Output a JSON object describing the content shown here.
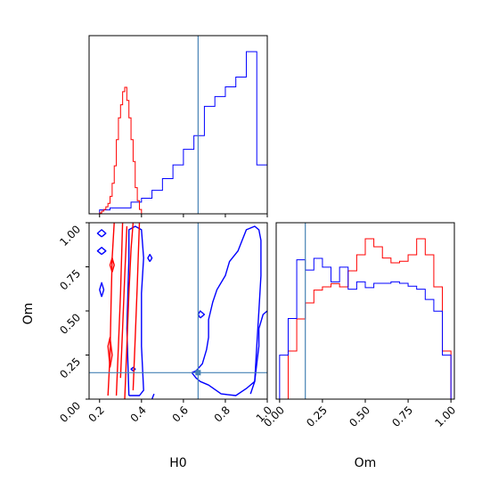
{
  "chart_data": {
    "type": "corner",
    "parameters": [
      "H0",
      "Om"
    ],
    "truth": {
      "H0": 0.67,
      "Om": 0.15
    },
    "truth_color": "#4682b4",
    "series": [
      {
        "color": "#ff0000"
      },
      {
        "color": "#0000ff"
      }
    ],
    "H0_axis": {
      "label": "H0",
      "range": [
        0.15,
        1.0
      ],
      "ticks": [
        "0.2",
        "0.4",
        "0.6",
        "0.8",
        "1.0"
      ],
      "tick_values": [
        0.2,
        0.4,
        0.6,
        0.8,
        1.0
      ]
    },
    "Om_axis": {
      "label": "Om",
      "range": [
        0.0,
        1.0
      ],
      "ticks": [
        "0.00",
        "0.25",
        "0.50",
        "0.75",
        "1.00"
      ],
      "tick_values": [
        0.0,
        0.25,
        0.5,
        0.75,
        1.0
      ]
    },
    "hist_H0": {
      "red": {
        "edges": [
          0.2,
          0.21,
          0.22,
          0.23,
          0.24,
          0.25,
          0.26,
          0.27,
          0.28,
          0.29,
          0.3,
          0.31,
          0.32,
          0.33,
          0.34,
          0.35,
          0.36,
          0.37,
          0.38,
          0.39,
          0.4
        ],
        "counts": [
          1,
          3,
          5,
          8,
          12,
          20,
          35,
          55,
          85,
          110,
          125,
          140,
          145,
          130,
          110,
          85,
          60,
          30,
          15,
          5
        ]
      },
      "blue": {
        "edges": [
          0.2,
          0.25,
          0.3,
          0.35,
          0.4,
          0.45,
          0.5,
          0.55,
          0.6,
          0.65,
          0.7,
          0.75,
          0.8,
          0.85,
          0.9,
          0.95,
          1.0
        ],
        "counts": [
          2,
          3,
          3,
          6,
          8,
          12,
          18,
          25,
          33,
          40,
          55,
          60,
          65,
          70,
          83,
          25
        ]
      }
    },
    "hist_Om": {
      "red": {
        "edges": [
          0.0,
          0.05,
          0.1,
          0.15,
          0.2,
          0.25,
          0.3,
          0.35,
          0.4,
          0.45,
          0.5,
          0.55,
          0.6,
          0.65,
          0.7,
          0.75,
          0.8,
          0.85,
          0.9,
          0.95,
          1.0
        ],
        "counts": [
          0,
          30,
          50,
          60,
          68,
          70,
          72,
          70,
          80,
          90,
          100,
          95,
          88,
          85,
          86,
          90,
          100,
          90,
          70,
          30
        ]
      },
      "blue": {
        "edges": [
          0.0,
          0.05,
          0.1,
          0.15,
          0.2,
          0.25,
          0.3,
          0.35,
          0.4,
          0.45,
          0.5,
          0.55,
          0.6,
          0.65,
          0.7,
          0.75,
          0.8,
          0.85,
          0.9,
          0.95,
          1.0
        ],
        "counts": [
          30,
          55,
          95,
          88,
          96,
          90,
          80,
          90,
          75,
          80,
          76,
          79,
          79,
          80,
          79,
          77,
          75,
          68,
          60,
          30
        ]
      }
    },
    "contours": {
      "red": [
        [
          [
            0.24,
            0.02
          ],
          [
            0.25,
            0.25
          ],
          [
            0.255,
            0.55
          ],
          [
            0.26,
            0.8
          ],
          [
            0.27,
            1.0
          ]
        ],
        [
          [
            0.28,
            0.02
          ],
          [
            0.29,
            0.3
          ],
          [
            0.3,
            0.6
          ],
          [
            0.31,
            1.0
          ]
        ],
        [
          [
            0.32,
            0.0
          ],
          [
            0.33,
            0.3
          ],
          [
            0.34,
            0.6
          ],
          [
            0.35,
            0.85
          ],
          [
            0.36,
            1.0
          ]
        ],
        [
          [
            0.36,
            0.05
          ],
          [
            0.37,
            0.35
          ],
          [
            0.38,
            0.65
          ],
          [
            0.39,
            1.0
          ]
        ],
        [
          [
            0.3,
            0.12
          ],
          [
            0.31,
            0.4
          ],
          [
            0.32,
            0.7
          ],
          [
            0.33,
            0.98
          ]
        ],
        [
          [
            0.25,
            0.18
          ],
          [
            0.26,
            0.25
          ],
          [
            0.25,
            0.35
          ],
          [
            0.24,
            0.3
          ],
          [
            0.25,
            0.18
          ]
        ],
        [
          [
            0.26,
            0.72
          ],
          [
            0.27,
            0.76
          ],
          [
            0.26,
            0.8
          ],
          [
            0.25,
            0.76
          ],
          [
            0.26,
            0.72
          ]
        ]
      ],
      "blue": [
        [
          [
            0.34,
            0.02
          ],
          [
            0.33,
            0.4
          ],
          [
            0.34,
            0.8
          ],
          [
            0.34,
            0.96
          ],
          [
            0.37,
            0.98
          ],
          [
            0.4,
            0.96
          ],
          [
            0.41,
            0.8
          ],
          [
            0.4,
            0.6
          ],
          [
            0.4,
            0.3
          ],
          [
            0.41,
            0.05
          ],
          [
            0.39,
            0.02
          ],
          [
            0.34,
            0.02
          ]
        ],
        [
          [
            0.21,
            0.92
          ],
          [
            0.23,
            0.94
          ],
          [
            0.21,
            0.96
          ],
          [
            0.19,
            0.94
          ],
          [
            0.21,
            0.92
          ]
        ],
        [
          [
            0.21,
            0.82
          ],
          [
            0.23,
            0.84
          ],
          [
            0.21,
            0.86
          ],
          [
            0.19,
            0.84
          ],
          [
            0.21,
            0.82
          ]
        ],
        [
          [
            0.21,
            0.58
          ],
          [
            0.22,
            0.62
          ],
          [
            0.21,
            0.66
          ],
          [
            0.2,
            0.62
          ],
          [
            0.21,
            0.58
          ]
        ],
        [
          [
            0.44,
            0.78
          ],
          [
            0.45,
            0.8
          ],
          [
            0.44,
            0.82
          ],
          [
            0.43,
            0.8
          ],
          [
            0.44,
            0.78
          ]
        ],
        [
          [
            0.36,
            0.16
          ],
          [
            0.37,
            0.17
          ],
          [
            0.36,
            0.18
          ],
          [
            0.35,
            0.17
          ],
          [
            0.36,
            0.16
          ]
        ],
        [
          [
            0.68,
            0.46
          ],
          [
            0.7,
            0.48
          ],
          [
            0.68,
            0.5
          ],
          [
            0.67,
            0.48
          ],
          [
            0.68,
            0.46
          ]
        ],
        [
          [
            0.64,
            0.15
          ],
          [
            0.66,
            0.12
          ],
          [
            0.68,
            0.1
          ],
          [
            0.72,
            0.08
          ],
          [
            0.78,
            0.03
          ],
          [
            0.85,
            0.02
          ],
          [
            0.9,
            0.06
          ],
          [
            0.94,
            0.1
          ],
          [
            0.95,
            0.3
          ],
          [
            0.96,
            0.5
          ],
          [
            0.97,
            0.7
          ],
          [
            0.97,
            0.9
          ],
          [
            0.96,
            0.96
          ],
          [
            0.94,
            0.98
          ],
          [
            0.9,
            0.96
          ],
          [
            0.88,
            0.9
          ],
          [
            0.86,
            0.84
          ],
          [
            0.82,
            0.78
          ],
          [
            0.8,
            0.7
          ],
          [
            0.76,
            0.62
          ],
          [
            0.74,
            0.55
          ],
          [
            0.72,
            0.45
          ],
          [
            0.72,
            0.35
          ],
          [
            0.71,
            0.28
          ],
          [
            0.69,
            0.2
          ],
          [
            0.66,
            0.16
          ],
          [
            0.64,
            0.15
          ]
        ],
        [
          [
            0.92,
            0.03
          ],
          [
            0.94,
            0.1
          ],
          [
            0.95,
            0.2
          ],
          [
            0.96,
            0.3
          ],
          [
            0.96,
            0.4
          ],
          [
            0.98,
            0.48
          ],
          [
            1.0,
            0.5
          ]
        ],
        [
          [
            0.45,
            0.0
          ],
          [
            0.46,
            0.03
          ]
        ]
      ]
    }
  }
}
